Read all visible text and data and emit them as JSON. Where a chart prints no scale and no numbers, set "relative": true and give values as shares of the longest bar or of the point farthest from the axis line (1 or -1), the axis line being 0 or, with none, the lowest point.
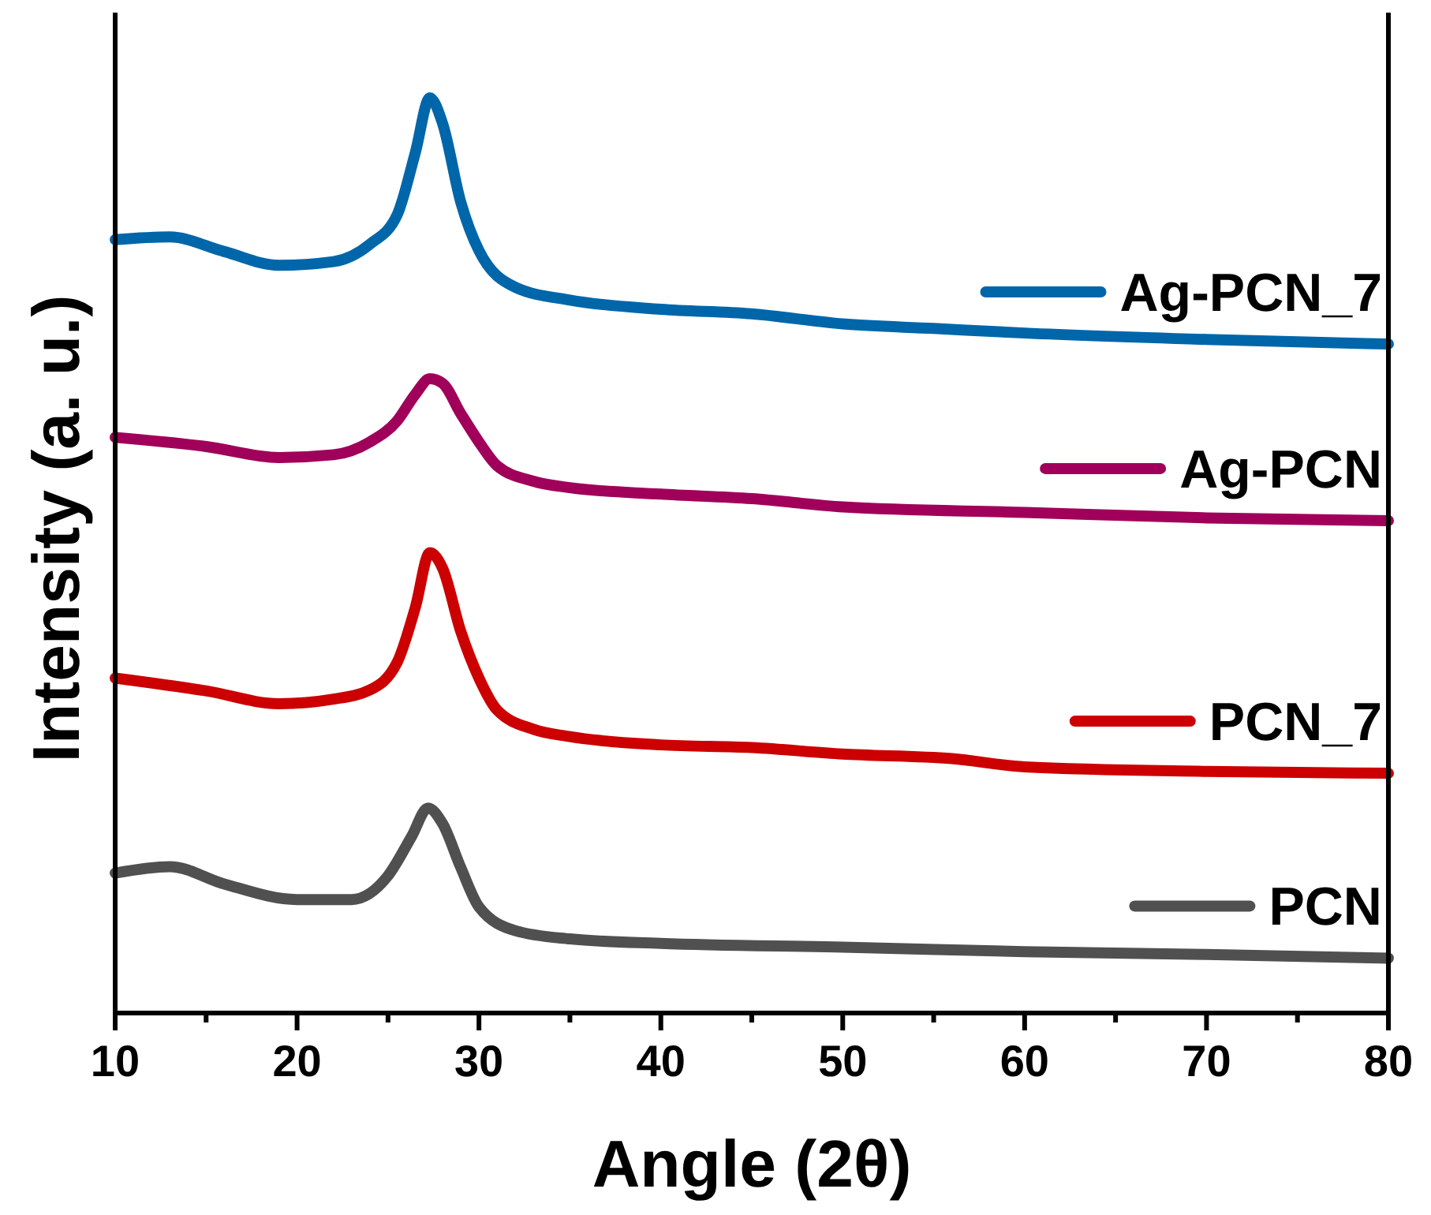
{
  "chart_data": {
    "type": "line",
    "relative": true,
    "xlabel": "Angle (2θ)",
    "ylabel": "Intensity (a. u.)",
    "xlim": [
      10,
      80
    ],
    "xticks": [
      10,
      {
        "value": 15,
        "label": null
      },
      20,
      {
        "value": 25,
        "label": null
      },
      30,
      {
        "value": 35,
        "label": null
      },
      40,
      {
        "value": 45,
        "label": null
      },
      50,
      {
        "value": 55,
        "label": null
      },
      60,
      {
        "value": 65,
        "label": null
      },
      70,
      {
        "value": 75,
        "label": null
      },
      80
    ],
    "grid": false,
    "legend": "right",
    "marker": "none",
    "line_style": "solid",
    "series": [
      {
        "name": "Ag-PCN_7",
        "color": "#0066aa",
        "x": [
          10,
          13,
          16,
          19,
          22,
          24,
          25.5,
          26.5,
          27.3,
          28,
          29,
          30,
          32,
          35,
          40,
          45,
          50,
          55,
          60,
          70,
          80
        ],
        "values": [
          0.845,
          0.848,
          0.832,
          0.817,
          0.821,
          0.84,
          0.872,
          0.94,
          1.0,
          0.972,
          0.886,
          0.833,
          0.793,
          0.779,
          0.769,
          0.764,
          0.753,
          0.748,
          0.743,
          0.736,
          0.731
        ]
      },
      {
        "name": "Ag-PCN",
        "color": "#a0005a",
        "x": [
          10,
          15,
          19,
          22,
          24,
          25.5,
          26.5,
          27.3,
          28,
          29,
          30,
          31,
          33,
          35,
          40,
          45,
          50,
          60,
          70,
          80
        ],
        "values": [
          0.629,
          0.619,
          0.607,
          0.61,
          0.624,
          0.647,
          0.676,
          0.693,
          0.688,
          0.655,
          0.624,
          0.598,
          0.581,
          0.574,
          0.567,
          0.562,
          0.553,
          0.547,
          0.541,
          0.538
        ]
      },
      {
        "name": "PCN_7",
        "color": "#cc0000",
        "x": [
          10,
          15,
          19,
          22,
          24,
          25.5,
          26.5,
          27.3,
          28,
          29,
          30,
          31,
          33,
          35,
          40,
          45,
          50,
          56,
          60,
          70,
          80
        ],
        "values": [
          0.366,
          0.352,
          0.338,
          0.343,
          0.353,
          0.383,
          0.443,
          0.503,
          0.486,
          0.417,
          0.366,
          0.331,
          0.31,
          0.302,
          0.293,
          0.29,
          0.283,
          0.278,
          0.269,
          0.264,
          0.262
        ]
      },
      {
        "name": "PCN",
        "color": "#505050",
        "x": [
          10,
          13,
          16,
          20,
          23,
          25,
          26.3,
          27.2,
          28,
          29,
          30,
          32,
          35,
          40,
          50,
          60,
          70,
          80
        ],
        "values": [
          0.153,
          0.16,
          0.141,
          0.124,
          0.124,
          0.15,
          0.193,
          0.224,
          0.207,
          0.159,
          0.116,
          0.09,
          0.081,
          0.076,
          0.072,
          0.067,
          0.064,
          0.06
        ]
      }
    ]
  }
}
